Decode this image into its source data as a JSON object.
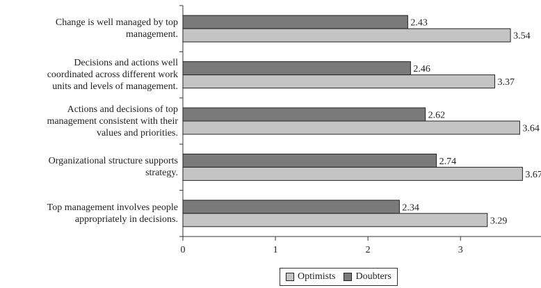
{
  "chart_data": {
    "type": "bar",
    "orientation": "horizontal",
    "categories": [
      [
        "Change is well managed by top",
        "management."
      ],
      [
        "Decisions and actions well",
        "coordinated across different work",
        "units and levels of management."
      ],
      [
        "Actions and decisions of top",
        "management consistent with their",
        "values and priorities."
      ],
      [
        "Organizational structure supports",
        "strategy."
      ],
      [
        "Top management involves people",
        "appropriately in decisions."
      ]
    ],
    "series": [
      {
        "name": "Doubters",
        "color": "#7a7a7a",
        "values": [
          2.43,
          2.46,
          2.62,
          2.74,
          2.34
        ],
        "labels": [
          "2.43",
          "2.46",
          "2.62",
          "2.74",
          "2.34"
        ]
      },
      {
        "name": "Optimists",
        "color": "#c4c4c4",
        "values": [
          3.54,
          3.37,
          3.64,
          3.67,
          3.29
        ],
        "labels": [
          "3.54",
          "3.37",
          "3.64",
          "3.67",
          "3.29"
        ]
      }
    ],
    "xlim": [
      0,
      3.87
    ],
    "xticks": [
      "0",
      "1",
      "2",
      "3"
    ],
    "legend": {
      "placement": "bottom-center",
      "order": [
        "Optimists",
        "Doubters"
      ]
    },
    "grid": false
  }
}
